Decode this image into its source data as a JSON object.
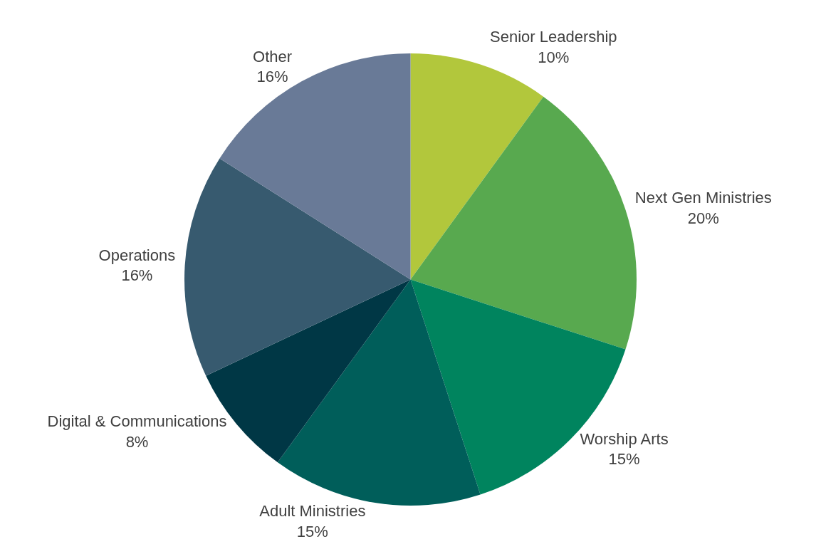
{
  "chart_data": {
    "type": "pie",
    "categories": [
      "Senior Leadership",
      "Next Gen Ministries",
      "Worship Arts",
      "Adult Ministries",
      "Digital & Communications",
      "Operations",
      "Other"
    ],
    "values": [
      10,
      20,
      15,
      15,
      8,
      16,
      16
    ],
    "value_labels": [
      "10%",
      "20%",
      "15%",
      "15%",
      "8%",
      "16%",
      "16%"
    ],
    "colors": [
      "#b2c73c",
      "#58a94f",
      "#00845e",
      "#005e5a",
      "#003745",
      "#375a6f",
      "#697a97"
    ],
    "legend": false
  }
}
